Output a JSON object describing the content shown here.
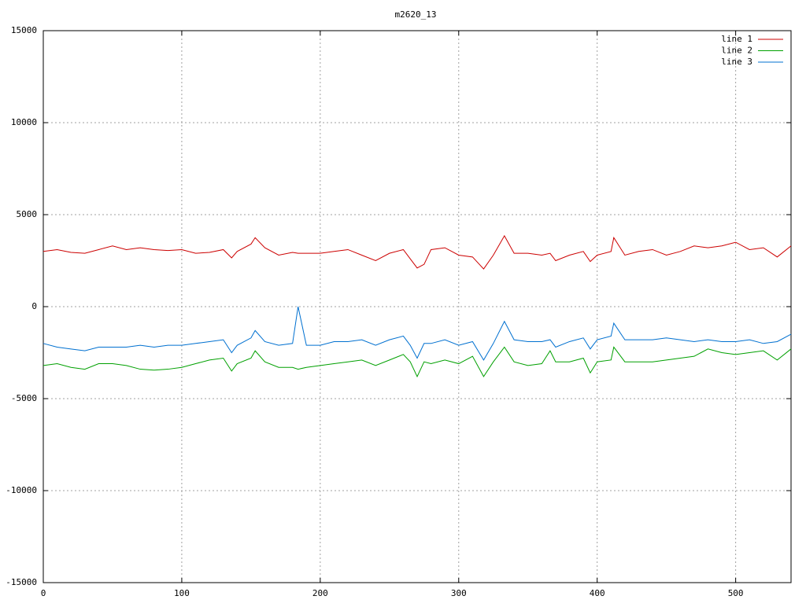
{
  "chart_data": {
    "type": "line",
    "title": "m2620_13",
    "x": [
      0,
      10,
      20,
      30,
      40,
      50,
      60,
      70,
      80,
      90,
      100,
      110,
      120,
      130,
      136,
      140,
      150,
      153,
      160,
      170,
      180,
      184,
      190,
      200,
      210,
      220,
      230,
      240,
      250,
      260,
      265,
      270,
      275,
      280,
      290,
      300,
      310,
      318,
      325,
      333,
      340,
      350,
      360,
      366,
      370,
      380,
      390,
      395,
      400,
      410,
      412,
      420,
      430,
      440,
      450,
      460,
      470,
      480,
      490,
      500,
      510,
      520,
      530,
      540
    ],
    "series": [
      {
        "name": "line 1",
        "color": "#cc0000",
        "values": [
          3000,
          3100,
          2950,
          2900,
          3100,
          3300,
          3100,
          3200,
          3100,
          3050,
          3100,
          2900,
          2950,
          3100,
          2650,
          3000,
          3400,
          3750,
          3200,
          2800,
          2950,
          2900,
          2900,
          2900,
          3000,
          3100,
          2800,
          2500,
          2900,
          3100,
          2600,
          2100,
          2300,
          3100,
          3200,
          2800,
          2700,
          2050,
          2800,
          3850,
          2900,
          2900,
          2800,
          2900,
          2500,
          2800,
          3000,
          2450,
          2800,
          3000,
          3750,
          2800,
          3000,
          3100,
          2800,
          3000,
          3300,
          3200,
          3300,
          3500,
          3100,
          3200,
          2700,
          3300
        ]
      },
      {
        "name": "line 2",
        "color": "#00a000",
        "values": [
          -3200,
          -3100,
          -3300,
          -3400,
          -3100,
          -3100,
          -3200,
          -3400,
          -3450,
          -3400,
          -3300,
          -3100,
          -2900,
          -2800,
          -3500,
          -3100,
          -2800,
          -2400,
          -3000,
          -3300,
          -3300,
          -3400,
          -3300,
          -3200,
          -3100,
          -3000,
          -2900,
          -3200,
          -2900,
          -2600,
          -3000,
          -3800,
          -3000,
          -3100,
          -2900,
          -3100,
          -2700,
          -3800,
          -3000,
          -2200,
          -3000,
          -3200,
          -3100,
          -2400,
          -3000,
          -3000,
          -2800,
          -3600,
          -3000,
          -2900,
          -2200,
          -3000,
          -3000,
          -3000,
          -2900,
          -2800,
          -2700,
          -2300,
          -2500,
          -2600,
          -2500,
          -2400,
          -2900,
          -2300
        ]
      },
      {
        "name": "line 3",
        "color": "#0070d0",
        "values": [
          -2000,
          -2200,
          -2300,
          -2400,
          -2200,
          -2200,
          -2200,
          -2100,
          -2200,
          -2100,
          -2100,
          -2000,
          -1900,
          -1800,
          -2500,
          -2100,
          -1700,
          -1300,
          -1900,
          -2100,
          -2000,
          0,
          -2100,
          -2100,
          -1900,
          -1900,
          -1800,
          -2100,
          -1800,
          -1600,
          -2100,
          -2800,
          -2000,
          -2000,
          -1800,
          -2100,
          -1900,
          -2900,
          -2000,
          -800,
          -1800,
          -1900,
          -1900,
          -1800,
          -2200,
          -1900,
          -1700,
          -2300,
          -1800,
          -1600,
          -900,
          -1800,
          -1800,
          -1800,
          -1700,
          -1800,
          -1900,
          -1800,
          -1900,
          -1900,
          -1800,
          -2000,
          -1900,
          -1500
        ]
      }
    ],
    "xlim": [
      0,
      540
    ],
    "xticks": [
      0,
      100,
      200,
      300,
      400,
      500
    ],
    "ylim": [
      -15000,
      15000
    ],
    "yticks": [
      -15000,
      -10000,
      -5000,
      0,
      5000,
      10000,
      15000
    ],
    "grid": true,
    "legend": "top-right"
  }
}
